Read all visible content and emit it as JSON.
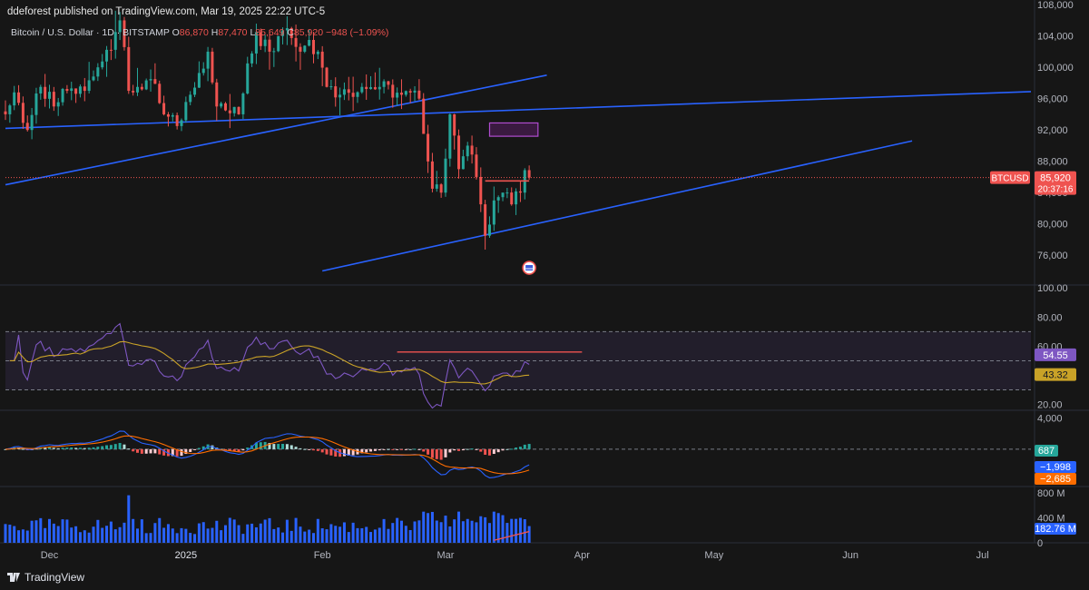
{
  "header": {
    "published": "ddeforest published on TradingView.com, Mar 19, 2025 22:22 UTC-5",
    "symbol": "Bitcoin / U.S. Dollar · 1D · BITSTAMP",
    "o_label": "O",
    "o_value": "86,870",
    "h_label": "H",
    "h_value": "87,470",
    "l_label": "L",
    "l_value": "85,649",
    "c_label": "C",
    "c_value": "85,920",
    "change": "−948 (−1.09%)"
  },
  "footer": {
    "brand": "TradingView"
  },
  "colors": {
    "up": "#26a69a",
    "down": "#ef5350",
    "trendline": "#2962ff",
    "rsi_line": "#7e57c2",
    "rsi_ma": "#c9a227",
    "macd_line": "#2962ff",
    "signal_line": "#ff6d00",
    "volume": "#2962ff",
    "zone": "#9c27b0",
    "background": "#161616"
  },
  "chart_data": [
    {
      "type": "candlestick",
      "pane": "price",
      "symbol": "BTCUSD",
      "y_ticks": [
        "108,000",
        "104,000",
        "100,000",
        "96,000",
        "92,000",
        "88,000",
        "84,000",
        "80,000",
        "76,000"
      ],
      "y_tick_values": [
        108000,
        104000,
        100000,
        96000,
        92000,
        88000,
        84000,
        80000,
        76000
      ],
      "ylim": [
        72200,
        108600
      ],
      "x_ticks": [
        "Dec",
        "2025",
        "Feb",
        "Mar",
        "Apr",
        "May",
        "Jun",
        "Jul"
      ],
      "x_tick_dates": [
        "2024-12-01",
        "2025-01-01",
        "2025-02-01",
        "2025-03-01",
        "2025-04-01",
        "2025-05-01",
        "2025-06-01",
        "2025-07-01"
      ],
      "xlim": [
        "2024-11-21",
        "2025-07-12"
      ],
      "last_price_label": "BTCUSD",
      "last_price": "85,920",
      "last_price_value": 85920,
      "countdown": "20:37:16",
      "close_anchors": [
        [
          "2024-11-21",
          94000
        ],
        [
          "2024-11-23",
          96800
        ],
        [
          "2024-11-26",
          92000
        ],
        [
          "2024-11-29",
          97500
        ],
        [
          "2024-12-02",
          95000
        ],
        [
          "2024-12-05",
          97000
        ],
        [
          "2024-12-09",
          97000
        ],
        [
          "2024-12-12",
          100000
        ],
        [
          "2024-12-16",
          104500
        ],
        [
          "2024-12-17",
          106000
        ],
        [
          "2024-12-19",
          97000
        ],
        [
          "2024-12-21",
          97500
        ],
        [
          "2024-12-24",
          98500
        ],
        [
          "2024-12-27",
          94000
        ],
        [
          "2024-12-30",
          92500
        ],
        [
          "2025-01-02",
          96500
        ],
        [
          "2025-01-06",
          102000
        ],
        [
          "2025-01-08",
          95000
        ],
        [
          "2025-01-10",
          94500
        ],
        [
          "2025-01-13",
          94000
        ],
        [
          "2025-01-15",
          100500
        ],
        [
          "2025-01-17",
          104500
        ],
        [
          "2025-01-20",
          102000
        ],
        [
          "2025-01-22",
          104000
        ],
        [
          "2025-01-24",
          105000
        ],
        [
          "2025-01-27",
          102000
        ],
        [
          "2025-01-29",
          103500
        ],
        [
          "2025-01-31",
          102000
        ],
        [
          "2025-02-02",
          97500
        ],
        [
          "2025-02-05",
          96500
        ],
        [
          "2025-02-10",
          97500
        ],
        [
          "2025-02-14",
          97500
        ],
        [
          "2025-02-19",
          96500
        ],
        [
          "2025-02-23",
          96000
        ],
        [
          "2025-02-24",
          91500
        ],
        [
          "2025-02-26",
          84500
        ],
        [
          "2025-02-28",
          84000
        ],
        [
          "2025-03-02",
          94000
        ],
        [
          "2025-03-04",
          87000
        ],
        [
          "2025-03-06",
          90000
        ],
        [
          "2025-03-08",
          86000
        ],
        [
          "2025-03-10",
          78500
        ],
        [
          "2025-03-12",
          83000
        ],
        [
          "2025-03-14",
          84000
        ],
        [
          "2025-03-16",
          82500
        ],
        [
          "2025-03-18",
          84000
        ],
        [
          "2025-03-19",
          86870
        ],
        [
          "2025-03-20",
          85920
        ]
      ],
      "trendlines": [
        {
          "from": [
            "2024-11-21",
            85000
          ],
          "to": [
            "2025-03-24",
            99000
          ]
        },
        {
          "from": [
            "2024-11-21",
            92200
          ],
          "to": [
            "2025-07-12",
            96900
          ]
        },
        {
          "from": [
            "2025-02-01",
            74000
          ],
          "to": [
            "2025-06-15",
            90600
          ]
        }
      ],
      "zone": {
        "x": [
          "2025-03-11",
          "2025-03-22"
        ],
        "y": [
          91200,
          92900
        ]
      },
      "horizontal_segment": {
        "x": [
          "2025-03-10",
          "2025-03-20"
        ],
        "y": 85500
      }
    },
    {
      "type": "line",
      "pane": "rsi",
      "y_ticks": [
        "100.00",
        "80.00",
        "60.00",
        "20.00"
      ],
      "y_tick_values": [
        100,
        80,
        60,
        20
      ],
      "bands": [
        70,
        50,
        30
      ],
      "ylim": [
        16,
        102
      ],
      "last_values": {
        "rsi": "54.55",
        "ma": "43.32"
      },
      "resistance": {
        "x": [
          "2025-02-18",
          "2025-04-01"
        ],
        "y": 56
      }
    },
    {
      "type": "bar",
      "pane": "macd",
      "y_ticks": [
        "4,000"
      ],
      "y_tick_values": [
        4000
      ],
      "ylim": [
        -4800,
        5000
      ],
      "last_values": {
        "histogram": "687",
        "macd": "−1,998",
        "signal": "−2,685"
      }
    },
    {
      "type": "bar",
      "pane": "volume",
      "y_ticks": [
        "800 M",
        "400 M",
        "0"
      ],
      "y_tick_values": [
        800,
        400,
        0
      ],
      "ylim": [
        0,
        900
      ],
      "last_value": "182.76 M"
    }
  ]
}
